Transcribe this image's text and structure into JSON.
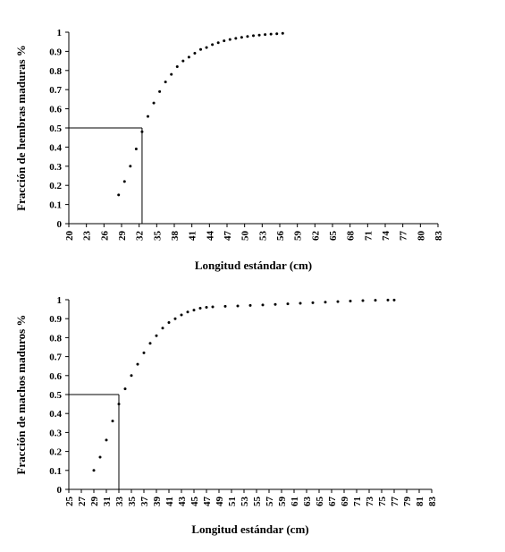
{
  "chart_data": [
    {
      "type": "scatter",
      "xlabel": "Longitud estándar (cm)",
      "ylabel": "Fracción de hembras maduras %",
      "ylim": [
        0,
        1
      ],
      "y_ticks": [
        "0",
        "0.1",
        "0.2",
        "0.3",
        "0.4",
        "0.5",
        "0.6",
        "0.7",
        "0.8",
        "0.9",
        "1"
      ],
      "x_ticks": [
        "20",
        "23",
        "26",
        "29",
        "32",
        "35",
        "38",
        "41",
        "44",
        "47",
        "50",
        "53",
        "56",
        "59",
        "62",
        "65",
        "68",
        "71",
        "74",
        "77",
        "80",
        "83"
      ],
      "xlim": [
        20,
        83
      ],
      "series": [
        {
          "x": [
            28.5,
            29.5,
            30.5,
            31.5,
            32.5,
            33.5,
            34.5,
            35.5,
            36.5,
            37.5,
            38.5,
            39.5,
            40.5,
            41.5,
            42.5,
            43.5,
            44.5,
            45.5,
            46.5,
            47.5,
            48.5,
            49.5,
            50.5,
            51.5,
            52.5,
            53.5,
            54.5,
            55.5,
            56.5
          ],
          "y": [
            0.15,
            0.22,
            0.3,
            0.39,
            0.48,
            0.56,
            0.63,
            0.69,
            0.74,
            0.78,
            0.82,
            0.85,
            0.87,
            0.89,
            0.91,
            0.92,
            0.935,
            0.945,
            0.955,
            0.962,
            0.968,
            0.973,
            0.978,
            0.982,
            0.985,
            0.988,
            0.99,
            0.992,
            0.994
          ]
        }
      ],
      "reference": {
        "x": 32.5,
        "y": 0.5
      }
    },
    {
      "type": "scatter",
      "xlabel": "Longitud estándar (cm)",
      "ylabel": "Fracción de machos maduros %",
      "ylim": [
        0,
        1
      ],
      "y_ticks": [
        "0",
        "0.1",
        "0.2",
        "0.3",
        "0.4",
        "0.5",
        "0.6",
        "0.7",
        "0.8",
        "0.9",
        "1"
      ],
      "x_ticks": [
        "25",
        "27",
        "29",
        "31",
        "33",
        "35",
        "37",
        "39",
        "41",
        "43",
        "45",
        "47",
        "49",
        "51",
        "53",
        "55",
        "57",
        "59",
        "61",
        "63",
        "65",
        "67",
        "69",
        "71",
        "73",
        "75",
        "77",
        "79",
        "81",
        "83"
      ],
      "xlim": [
        25,
        83
      ],
      "series": [
        {
          "x": [
            29.0,
            30.0,
            31.0,
            32.0,
            33.0,
            34.0,
            35.0,
            36.0,
            37.0,
            38.0,
            39.0,
            40.0,
            41.0,
            42.0,
            43.0,
            44.0,
            45.0,
            46.0,
            47.0,
            48.0,
            50.0,
            52.0,
            54.0,
            56.0,
            58.0,
            60.0,
            62.0,
            64.0,
            66.0,
            68.0,
            70.0,
            72.0,
            74.0,
            76.0,
            77.0
          ],
          "y": [
            0.1,
            0.17,
            0.26,
            0.36,
            0.45,
            0.53,
            0.6,
            0.66,
            0.72,
            0.77,
            0.81,
            0.85,
            0.88,
            0.9,
            0.92,
            0.935,
            0.945,
            0.955,
            0.96,
            0.962,
            0.965,
            0.967,
            0.97,
            0.972,
            0.975,
            0.978,
            0.981,
            0.984,
            0.987,
            0.99,
            0.993,
            0.995,
            0.997,
            0.998,
            0.998
          ]
        }
      ],
      "reference": {
        "x": 33.0,
        "y": 0.5
      }
    }
  ]
}
